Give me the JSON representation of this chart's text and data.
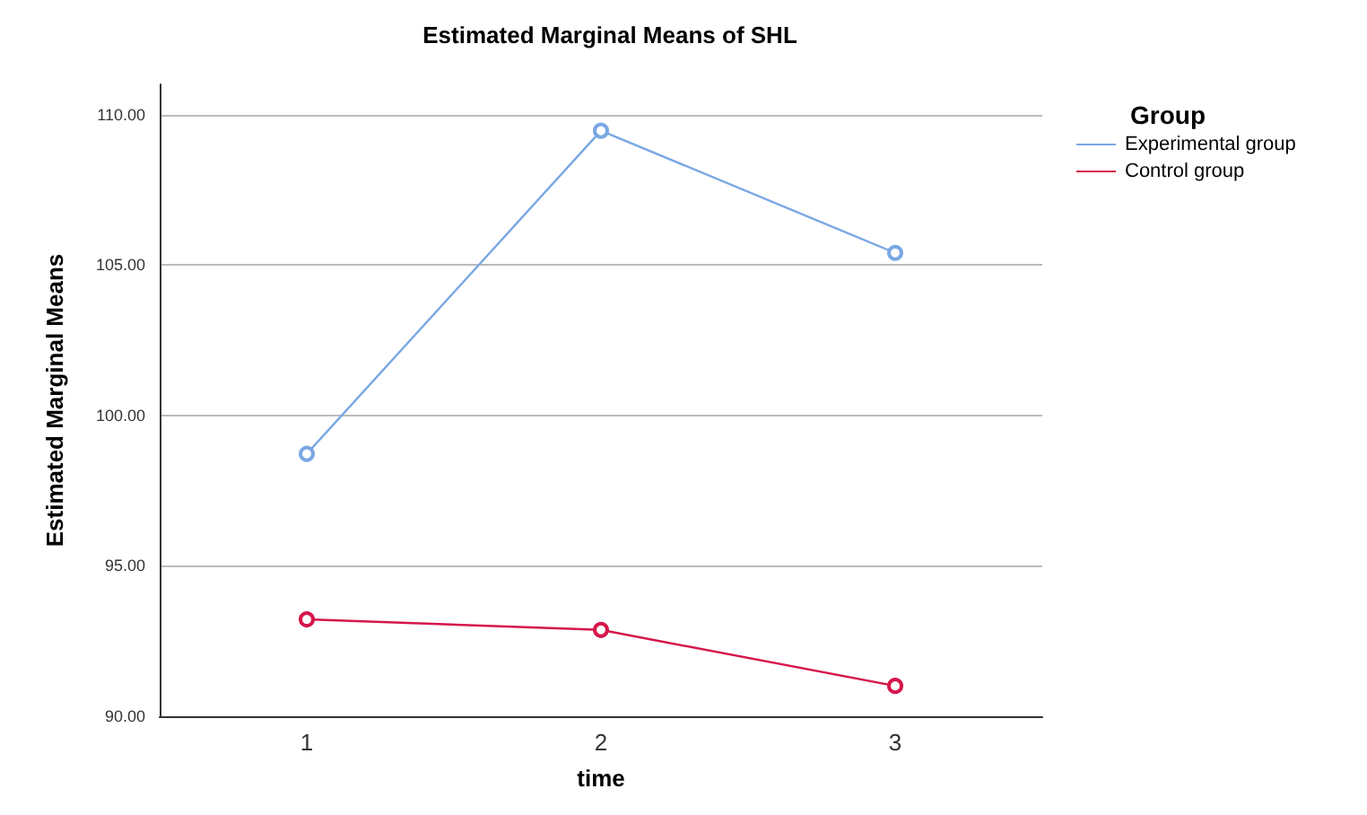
{
  "chart_data": {
    "type": "line",
    "title": "Estimated Marginal Means of SHL",
    "xlabel": "time",
    "ylabel": "Estimated Marginal Means",
    "legend_title": "Group",
    "categories": [
      "1",
      "2",
      "3"
    ],
    "series": [
      {
        "name": "Experimental group",
        "color": "#79a7e3",
        "values": [
          98.72,
          109.46,
          105.4
        ]
      },
      {
        "name": "Control group",
        "color": "#d6164b",
        "values": [
          93.22,
          92.87,
          91.01
        ]
      }
    ],
    "ylim": [
      90,
      111
    ],
    "yticks": [
      {
        "value": 90,
        "label": "90.00"
      },
      {
        "value": 95,
        "label": "95.00"
      },
      {
        "value": 100,
        "label": "100.00"
      },
      {
        "value": 105,
        "label": "105.00"
      },
      {
        "value": 110,
        "label": "110.00"
      }
    ],
    "grid": "y",
    "legend": "top right",
    "marker": "circle",
    "line_style": "solid"
  }
}
